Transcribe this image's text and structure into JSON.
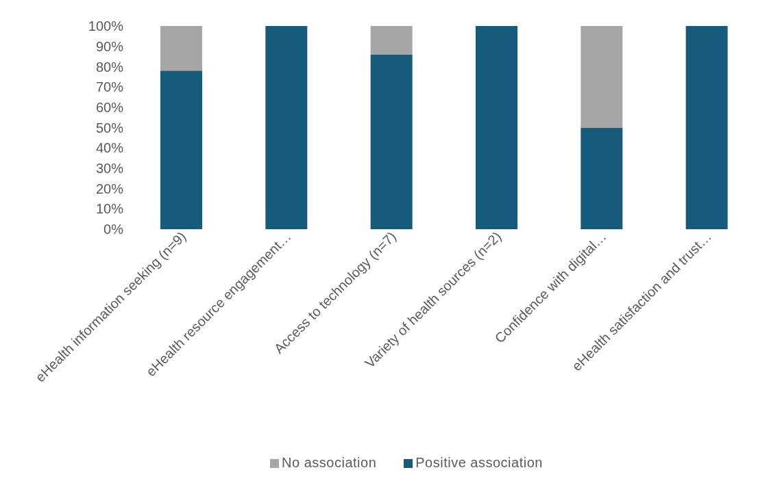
{
  "chart_data": {
    "type": "bar",
    "stacked": true,
    "categories": [
      "eHealth information seeking (n=9)",
      "eHealth resource engagement…",
      "Access to technology (n=7)",
      "Variety of health sources (n=2)",
      "Confidence with digital…",
      "eHealth satisfaction and trust…"
    ],
    "series": [
      {
        "name": "Positive association",
        "color": "#175b7a",
        "values": [
          78,
          100,
          86,
          100,
          50,
          100
        ]
      },
      {
        "name": "No association",
        "color": "#a6a6a6",
        "values": [
          22,
          0,
          14,
          0,
          50,
          0
        ]
      }
    ],
    "ylim": [
      0,
      100
    ],
    "yticks": [
      {
        "value": 0,
        "label": "0%"
      },
      {
        "value": 10,
        "label": "10%"
      },
      {
        "value": 20,
        "label": "20%"
      },
      {
        "value": 30,
        "label": "30%"
      },
      {
        "value": 40,
        "label": "40%"
      },
      {
        "value": 50,
        "label": "50%"
      },
      {
        "value": 60,
        "label": "60%"
      },
      {
        "value": 70,
        "label": "70%"
      },
      {
        "value": 80,
        "label": "80%"
      },
      {
        "value": 90,
        "label": "90%"
      },
      {
        "value": 100,
        "label": "100%"
      }
    ],
    "grid": false,
    "legend": "bottom"
  }
}
